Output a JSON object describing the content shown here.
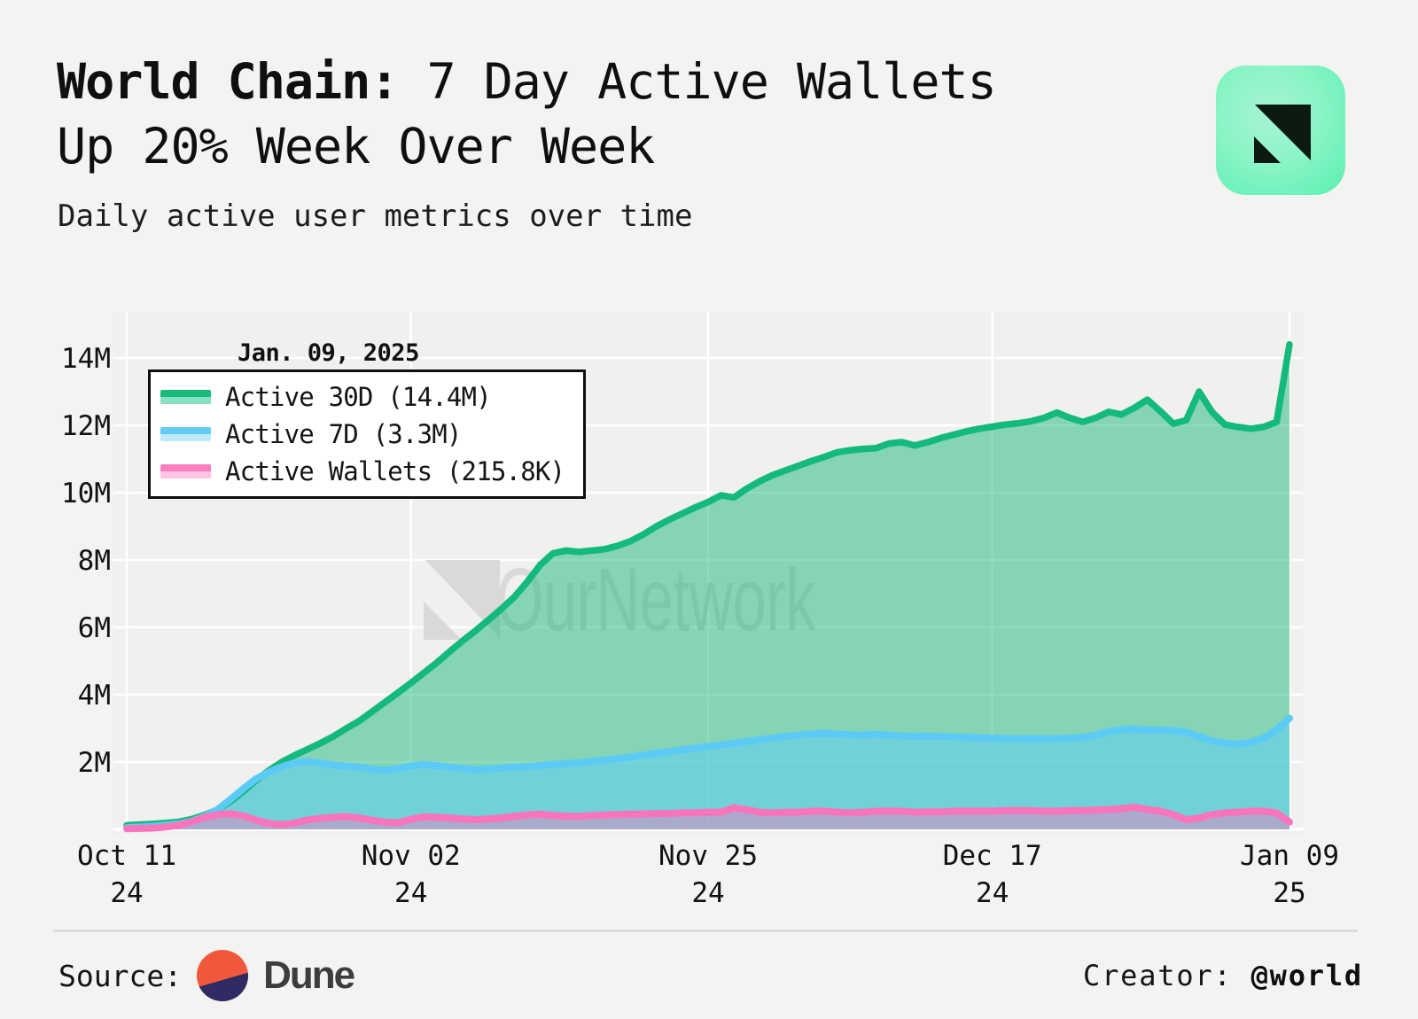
{
  "header": {
    "title_bold": "World Chain:",
    "title_rest": " 7 Day Active Wallets",
    "title_line2": "Up 20% Week Over Week",
    "subtitle": "Daily active user metrics over time"
  },
  "tooltip": {
    "date": "Jan. 09, 2025"
  },
  "legend": {
    "items": [
      {
        "id": "active-30d",
        "label": "Active 30D (14.4M)",
        "line_color": "#1ab97c",
        "fill_color": "#85e1bf"
      },
      {
        "id": "active-7d",
        "label": "Active 7D (3.3M)",
        "line_color": "#62ccf4",
        "fill_color": "#bfeafb"
      },
      {
        "id": "active-wallets",
        "label": "Active Wallets (215.8K)",
        "line_color": "#fb7ec0",
        "fill_color": "#fcc3e3"
      }
    ]
  },
  "watermark": {
    "text": "OurNetwork",
    "color": "#d9d9d8"
  },
  "footer": {
    "source_label": "Source:",
    "source_name": "Dune",
    "creator_label": "Creator: ",
    "creator_handle": "@world",
    "dune_orange": "#f1583b",
    "dune_navy": "#312b63"
  },
  "chart_data": {
    "type": "area",
    "title": "World Chain: 7 Day Active Wallets Up 20% Week Over Week",
    "subtitle": "Daily active user metrics over time",
    "x_unit": "days since Oct 11, 2024",
    "x_domain": [
      0,
      90
    ],
    "ylim": [
      0,
      15.2
    ],
    "grid": true,
    "legend_position": "top-left",
    "hover_date": "Jan. 09, 2025",
    "colors": {
      "plot_bg": "#f0f0ee",
      "gridline": "#ffffff",
      "page_bg": "#f3f3f1"
    },
    "y_ticks": [
      {
        "v": 2,
        "label": "2M"
      },
      {
        "v": 4,
        "label": "4M"
      },
      {
        "v": 6,
        "label": "6M"
      },
      {
        "v": 8,
        "label": "8M"
      },
      {
        "v": 10,
        "label": "10M"
      },
      {
        "v": 12,
        "label": "12M"
      },
      {
        "v": 14,
        "label": "14M"
      }
    ],
    "x_ticks": [
      {
        "day": 0,
        "label": "Oct 11",
        "year": "24"
      },
      {
        "day": 22,
        "label": "Nov 02",
        "year": "24"
      },
      {
        "day": 45,
        "label": "Nov 25",
        "year": "24"
      },
      {
        "day": 67,
        "label": "Dec 17",
        "year": "24"
      },
      {
        "day": 90,
        "label": "Jan 09",
        "year": "25"
      }
    ],
    "series": [
      {
        "id": "active-30d",
        "name": "Active 30D",
        "final_value": "14.4M",
        "line_color": "#14b97c",
        "fill_color": "rgba(26,185,124,0.5)",
        "line_width": 7.5,
        "points": [
          [
            0,
            0.12
          ],
          [
            2,
            0.16
          ],
          [
            4,
            0.22
          ],
          [
            5,
            0.3
          ],
          [
            6,
            0.42
          ],
          [
            7,
            0.58
          ],
          [
            8,
            0.82
          ],
          [
            9,
            1.12
          ],
          [
            10,
            1.45
          ],
          [
            11,
            1.75
          ],
          [
            12,
            2.0
          ],
          [
            13,
            2.2
          ],
          [
            14,
            2.38
          ],
          [
            15,
            2.56
          ],
          [
            16,
            2.76
          ],
          [
            17,
            3.0
          ],
          [
            18,
            3.22
          ],
          [
            19,
            3.5
          ],
          [
            20,
            3.78
          ],
          [
            21,
            4.06
          ],
          [
            22,
            4.35
          ],
          [
            23,
            4.65
          ],
          [
            24,
            4.95
          ],
          [
            25,
            5.28
          ],
          [
            26,
            5.6
          ],
          [
            27,
            5.9
          ],
          [
            28,
            6.22
          ],
          [
            29,
            6.55
          ],
          [
            30,
            6.9
          ],
          [
            31,
            7.35
          ],
          [
            32,
            7.85
          ],
          [
            33,
            8.2
          ],
          [
            34,
            8.28
          ],
          [
            35,
            8.24
          ],
          [
            36,
            8.28
          ],
          [
            37,
            8.32
          ],
          [
            38,
            8.42
          ],
          [
            39,
            8.56
          ],
          [
            40,
            8.76
          ],
          [
            41,
            9.0
          ],
          [
            42,
            9.2
          ],
          [
            43,
            9.38
          ],
          [
            44,
            9.56
          ],
          [
            45,
            9.72
          ],
          [
            46,
            9.92
          ],
          [
            47,
            9.86
          ],
          [
            48,
            10.12
          ],
          [
            49,
            10.34
          ],
          [
            50,
            10.52
          ],
          [
            51,
            10.66
          ],
          [
            52,
            10.8
          ],
          [
            53,
            10.94
          ],
          [
            54,
            11.06
          ],
          [
            55,
            11.2
          ],
          [
            56,
            11.26
          ],
          [
            57,
            11.3
          ],
          [
            58,
            11.32
          ],
          [
            59,
            11.46
          ],
          [
            60,
            11.5
          ],
          [
            61,
            11.4
          ],
          [
            62,
            11.5
          ],
          [
            63,
            11.62
          ],
          [
            64,
            11.72
          ],
          [
            65,
            11.82
          ],
          [
            66,
            11.9
          ],
          [
            67,
            11.96
          ],
          [
            68,
            12.02
          ],
          [
            69,
            12.06
          ],
          [
            70,
            12.12
          ],
          [
            71,
            12.22
          ],
          [
            72,
            12.38
          ],
          [
            73,
            12.22
          ],
          [
            74,
            12.1
          ],
          [
            75,
            12.22
          ],
          [
            76,
            12.4
          ],
          [
            77,
            12.32
          ],
          [
            78,
            12.52
          ],
          [
            79,
            12.76
          ],
          [
            80,
            12.42
          ],
          [
            81,
            12.05
          ],
          [
            82,
            12.15
          ],
          [
            83,
            13.0
          ],
          [
            84,
            12.4
          ],
          [
            85,
            12.02
          ],
          [
            86,
            11.95
          ],
          [
            87,
            11.9
          ],
          [
            88,
            11.95
          ],
          [
            89,
            12.1
          ],
          [
            90,
            14.4
          ]
        ]
      },
      {
        "id": "active-7d",
        "name": "Active 7D",
        "final_value": "3.3M",
        "line_color": "#5bcbf5",
        "fill_color": "rgba(96,205,245,0.55)",
        "line_width": 8,
        "points": [
          [
            0,
            0.05
          ],
          [
            2,
            0.09
          ],
          [
            4,
            0.16
          ],
          [
            5,
            0.24
          ],
          [
            6,
            0.38
          ],
          [
            7,
            0.58
          ],
          [
            8,
            0.88
          ],
          [
            9,
            1.2
          ],
          [
            10,
            1.5
          ],
          [
            11,
            1.7
          ],
          [
            12,
            1.86
          ],
          [
            13,
            1.98
          ],
          [
            14,
            2.02
          ],
          [
            15,
            1.97
          ],
          [
            16,
            1.91
          ],
          [
            17,
            1.88
          ],
          [
            18,
            1.85
          ],
          [
            19,
            1.79
          ],
          [
            20,
            1.76
          ],
          [
            21,
            1.81
          ],
          [
            22,
            1.88
          ],
          [
            23,
            1.93
          ],
          [
            24,
            1.89
          ],
          [
            25,
            1.85
          ],
          [
            26,
            1.81
          ],
          [
            27,
            1.78
          ],
          [
            28,
            1.8
          ],
          [
            29,
            1.82
          ],
          [
            30,
            1.85
          ],
          [
            31,
            1.86
          ],
          [
            32,
            1.9
          ],
          [
            33,
            1.93
          ],
          [
            34,
            1.95
          ],
          [
            35,
            1.98
          ],
          [
            36,
            2.02
          ],
          [
            37,
            2.06
          ],
          [
            38,
            2.1
          ],
          [
            39,
            2.15
          ],
          [
            40,
            2.2
          ],
          [
            41,
            2.26
          ],
          [
            42,
            2.31
          ],
          [
            43,
            2.36
          ],
          [
            44,
            2.41
          ],
          [
            45,
            2.46
          ],
          [
            46,
            2.51
          ],
          [
            47,
            2.56
          ],
          [
            48,
            2.61
          ],
          [
            49,
            2.66
          ],
          [
            50,
            2.71
          ],
          [
            51,
            2.76
          ],
          [
            52,
            2.8
          ],
          [
            53,
            2.84
          ],
          [
            54,
            2.85
          ],
          [
            55,
            2.83
          ],
          [
            56,
            2.81
          ],
          [
            57,
            2.8
          ],
          [
            58,
            2.82
          ],
          [
            59,
            2.8
          ],
          [
            60,
            2.78
          ],
          [
            61,
            2.76
          ],
          [
            62,
            2.77
          ],
          [
            63,
            2.76
          ],
          [
            64,
            2.75
          ],
          [
            65,
            2.74
          ],
          [
            66,
            2.72
          ],
          [
            67,
            2.71
          ],
          [
            68,
            2.7
          ],
          [
            69,
            2.69
          ],
          [
            70,
            2.7
          ],
          [
            71,
            2.69
          ],
          [
            72,
            2.7
          ],
          [
            73,
            2.71
          ],
          [
            74,
            2.73
          ],
          [
            75,
            2.8
          ],
          [
            76,
            2.9
          ],
          [
            77,
            2.97
          ],
          [
            78,
            2.98
          ],
          [
            79,
            2.96
          ],
          [
            80,
            2.95
          ],
          [
            81,
            2.94
          ],
          [
            82,
            2.89
          ],
          [
            83,
            2.76
          ],
          [
            84,
            2.63
          ],
          [
            85,
            2.56
          ],
          [
            86,
            2.53
          ],
          [
            87,
            2.59
          ],
          [
            88,
            2.71
          ],
          [
            89,
            2.96
          ],
          [
            90,
            3.3
          ]
        ]
      },
      {
        "id": "active-wallets",
        "name": "Active Wallets",
        "final_value": "215.8K",
        "line_color": "#f975bb",
        "fill_color": "rgba(249,117,187,0.42)",
        "line_width": 8,
        "points": [
          [
            0,
            0.02
          ],
          [
            2,
            0.04
          ],
          [
            3,
            0.07
          ],
          [
            4,
            0.12
          ],
          [
            5,
            0.22
          ],
          [
            6,
            0.35
          ],
          [
            7,
            0.44
          ],
          [
            8,
            0.47
          ],
          [
            9,
            0.4
          ],
          [
            10,
            0.28
          ],
          [
            11,
            0.18
          ],
          [
            12,
            0.14
          ],
          [
            13,
            0.19
          ],
          [
            14,
            0.28
          ],
          [
            15,
            0.33
          ],
          [
            16,
            0.36
          ],
          [
            17,
            0.38
          ],
          [
            18,
            0.34
          ],
          [
            19,
            0.27
          ],
          [
            20,
            0.21
          ],
          [
            21,
            0.2
          ],
          [
            22,
            0.3
          ],
          [
            23,
            0.37
          ],
          [
            24,
            0.36
          ],
          [
            25,
            0.34
          ],
          [
            26,
            0.31
          ],
          [
            27,
            0.29
          ],
          [
            28,
            0.31
          ],
          [
            29,
            0.34
          ],
          [
            30,
            0.39
          ],
          [
            31,
            0.43
          ],
          [
            32,
            0.45
          ],
          [
            33,
            0.41
          ],
          [
            34,
            0.39
          ],
          [
            35,
            0.39
          ],
          [
            36,
            0.41
          ],
          [
            37,
            0.43
          ],
          [
            38,
            0.44
          ],
          [
            39,
            0.45
          ],
          [
            40,
            0.46
          ],
          [
            41,
            0.47
          ],
          [
            42,
            0.47
          ],
          [
            43,
            0.49
          ],
          [
            44,
            0.49
          ],
          [
            45,
            0.51
          ],
          [
            46,
            0.51
          ],
          [
            47,
            0.64
          ],
          [
            48,
            0.58
          ],
          [
            49,
            0.51
          ],
          [
            50,
            0.49
          ],
          [
            51,
            0.51
          ],
          [
            52,
            0.51
          ],
          [
            53,
            0.54
          ],
          [
            54,
            0.54
          ],
          [
            55,
            0.51
          ],
          [
            56,
            0.49
          ],
          [
            57,
            0.51
          ],
          [
            58,
            0.54
          ],
          [
            59,
            0.54
          ],
          [
            60,
            0.54
          ],
          [
            61,
            0.51
          ],
          [
            62,
            0.52
          ],
          [
            63,
            0.52
          ],
          [
            64,
            0.54
          ],
          [
            65,
            0.54
          ],
          [
            66,
            0.54
          ],
          [
            67,
            0.54
          ],
          [
            68,
            0.56
          ],
          [
            69,
            0.56
          ],
          [
            70,
            0.56
          ],
          [
            71,
            0.54
          ],
          [
            72,
            0.54
          ],
          [
            73,
            0.56
          ],
          [
            74,
            0.56
          ],
          [
            75,
            0.57
          ],
          [
            76,
            0.59
          ],
          [
            77,
            0.61
          ],
          [
            78,
            0.66
          ],
          [
            79,
            0.59
          ],
          [
            80,
            0.54
          ],
          [
            81,
            0.44
          ],
          [
            82,
            0.29
          ],
          [
            83,
            0.34
          ],
          [
            84,
            0.44
          ],
          [
            85,
            0.49
          ],
          [
            86,
            0.51
          ],
          [
            87,
            0.54
          ],
          [
            88,
            0.54
          ],
          [
            89,
            0.49
          ],
          [
            90,
            0.216
          ]
        ]
      }
    ]
  }
}
